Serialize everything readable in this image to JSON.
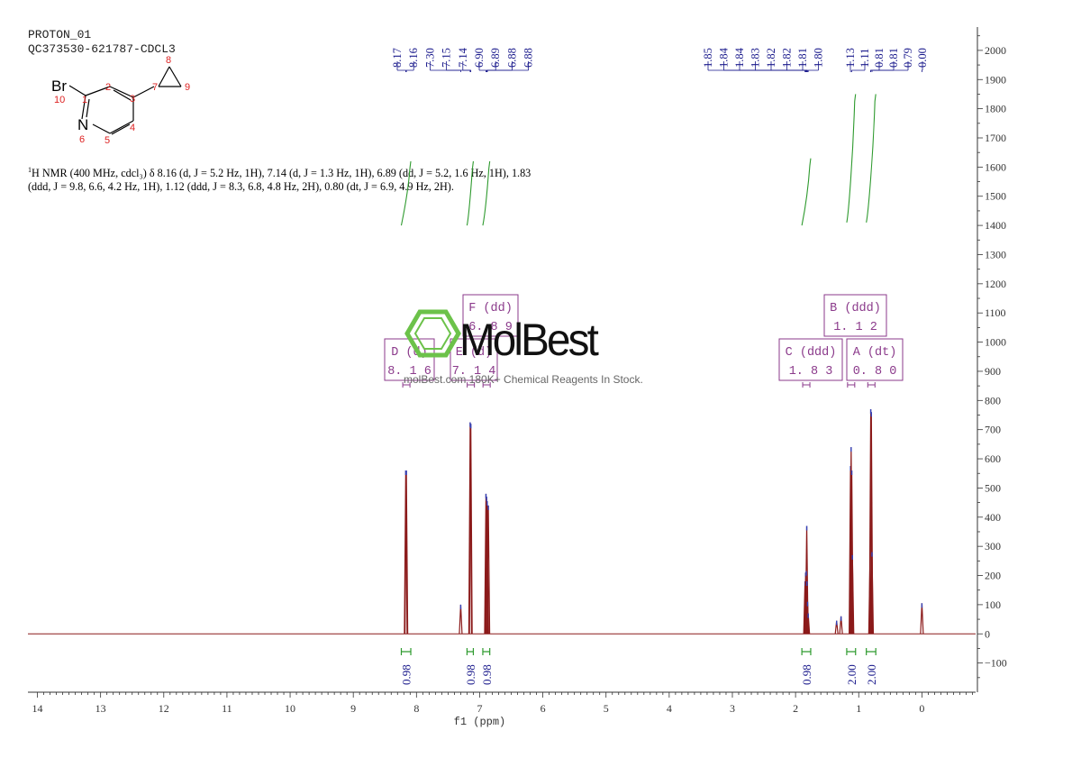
{
  "header": {
    "line1": "PROTON_01",
    "line2": "QC373530-621787-CDCL3"
  },
  "molecule": {
    "atoms": [
      {
        "id": "br",
        "label": "Br",
        "num": "10"
      },
      {
        "id": "c1",
        "label": "",
        "num": "1"
      },
      {
        "id": "c2",
        "label": "",
        "num": "2"
      },
      {
        "id": "c3",
        "label": "",
        "num": "3"
      },
      {
        "id": "c4",
        "label": "",
        "num": "4"
      },
      {
        "id": "c5",
        "label": "",
        "num": "5"
      },
      {
        "id": "n6",
        "label": "N",
        "num": "6"
      },
      {
        "id": "c7",
        "label": "",
        "num": "7"
      },
      {
        "id": "c8",
        "label": "",
        "num": "8"
      },
      {
        "id": "c9",
        "label": "",
        "num": "9"
      }
    ]
  },
  "nmr_description": {
    "prefix_sup": "1",
    "text": "H NMR (400 MHz, cdcl₃) δ 8.16 (d, J = 5.2 Hz, 1H), 7.14 (d, J = 1.3 Hz, 1H), 6.89 (dd, J = 5.2, 1.6 Hz, 1H), 1.83 (ddd, J = 9.8, 6.6, 4.2 Hz, 1H), 1.12 (ddd, J = 8.3, 6.8, 4.8 Hz, 2H), 0.80 (dt, J = 6.9, 4.9 Hz, 2H)."
  },
  "watermark": {
    "logo": "MolBest",
    "tagline": "molBest.com 180K+ Chemical Reagents In Stock."
  },
  "colors": {
    "spectrum": "#8b1a1a",
    "integral": "#2e9a2e",
    "peak_label": "#1a1a8c",
    "multiplet": "#8b3a8b",
    "axis": "#333333",
    "logo": "#6cc24a"
  },
  "chart_data": {
    "type": "line",
    "xlabel": "f1 (ppm)",
    "xlim": [
      14.15,
      -0.85
    ],
    "x_reversed": true,
    "x_ticks": [
      14,
      13,
      12,
      11,
      10,
      9,
      8,
      7,
      6,
      5,
      4,
      3,
      2,
      1,
      0
    ],
    "ylim": [
      -200,
      2080
    ],
    "y_ticks": [
      -100,
      0,
      100,
      200,
      300,
      400,
      500,
      600,
      700,
      800,
      900,
      1000,
      1100,
      1200,
      1300,
      1400,
      1500,
      1600,
      1700,
      1800,
      1900,
      2000
    ],
    "y_axis_side": "right",
    "peaks": [
      {
        "ppm": 8.17,
        "height": 560
      },
      {
        "ppm": 8.16,
        "height": 560
      },
      {
        "ppm": 7.3,
        "height": 100
      },
      {
        "ppm": 7.15,
        "height": 725
      },
      {
        "ppm": 7.14,
        "height": 720
      },
      {
        "ppm": 6.9,
        "height": 480
      },
      {
        "ppm": 6.89,
        "height": 470
      },
      {
        "ppm": 6.88,
        "height": 455
      },
      {
        "ppm": 6.88,
        "height": 440
      },
      {
        "ppm": 1.85,
        "height": 180
      },
      {
        "ppm": 1.84,
        "height": 210
      },
      {
        "ppm": 1.84,
        "height": 370
      },
      {
        "ppm": 1.83,
        "height": 215
      },
      {
        "ppm": 1.82,
        "height": 180
      },
      {
        "ppm": 1.81,
        "height": 110
      },
      {
        "ppm": 1.8,
        "height": 70
      },
      {
        "ppm": 1.35,
        "height": 45
      },
      {
        "ppm": 1.28,
        "height": 60
      },
      {
        "ppm": 1.13,
        "height": 575
      },
      {
        "ppm": 1.12,
        "height": 640
      },
      {
        "ppm": 1.11,
        "height": 560
      },
      {
        "ppm": 1.1,
        "height": 270
      },
      {
        "ppm": 0.82,
        "height": 270
      },
      {
        "ppm": 0.81,
        "height": 770
      },
      {
        "ppm": 0.8,
        "height": 760
      },
      {
        "ppm": 0.79,
        "height": 280
      },
      {
        "ppm": 0.0,
        "height": 105
      }
    ],
    "peak_labels": {
      "group_left": [
        "8.17",
        "8.16",
        "7.30",
        "7.15",
        "7.14",
        "6.90",
        "6.89",
        "6.88",
        "6.88"
      ],
      "group_right": [
        "1.85",
        "1.84",
        "1.84",
        "1.83",
        "1.82",
        "1.82",
        "1.81",
        "1.80",
        "1.13",
        "1.11",
        "0.81",
        "0.81",
        "0.79",
        "0.00"
      ]
    },
    "integrals": [
      {
        "from": 8.24,
        "to": 8.09,
        "value": "0.98",
        "curve_low": 1400,
        "curve_high": 1620
      },
      {
        "from": 7.2,
        "to": 7.1,
        "value": "0.98",
        "curve_low": 1400,
        "curve_high": 1620
      },
      {
        "from": 6.95,
        "to": 6.84,
        "value": "0.98",
        "curve_low": 1400,
        "curve_high": 1620
      },
      {
        "from": 1.9,
        "to": 1.76,
        "value": "0.98",
        "curve_low": 1400,
        "curve_high": 1630
      },
      {
        "from": 1.19,
        "to": 1.05,
        "value": "2.00",
        "curve_low": 1410,
        "curve_high": 1850
      },
      {
        "from": 0.88,
        "to": 0.73,
        "value": "2.00",
        "curve_low": 1410,
        "curve_high": 1850
      }
    ],
    "multiplets": [
      {
        "letter": "D",
        "type": "d",
        "shift": "8.16",
        "ppm": 8.16
      },
      {
        "letter": "F",
        "type": "dd",
        "shift": "6.89",
        "ppm": 6.89
      },
      {
        "letter": "E",
        "type": "d",
        "shift": "7.14",
        "ppm": 7.14
      },
      {
        "letter": "C",
        "type": "ddd",
        "shift": "1.83",
        "ppm": 1.83
      },
      {
        "letter": "B",
        "type": "ddd",
        "shift": "1.12",
        "ppm": 1.12
      },
      {
        "letter": "A",
        "type": "dt",
        "shift": "0.80",
        "ppm": 0.8
      }
    ]
  }
}
